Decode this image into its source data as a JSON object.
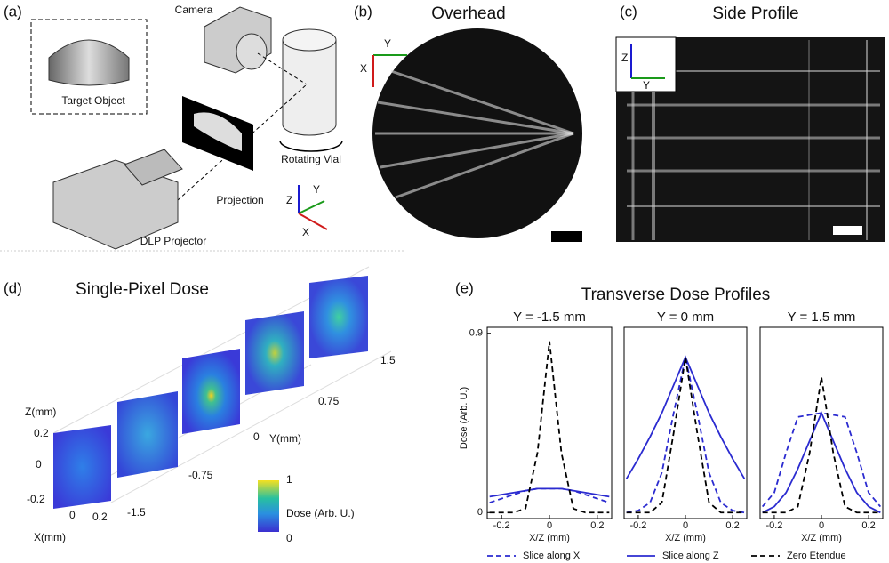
{
  "panel_a": {
    "label": "(a)",
    "camera": "Camera",
    "target": "Target Object",
    "vial": "Rotating Vial",
    "projection": "Projection",
    "projector": "DLP Projector",
    "axis_z": "Z",
    "axis_y": "Y",
    "axis_x": "X"
  },
  "panel_b": {
    "label": "(b)",
    "title": "Overhead",
    "axis_y": "Y",
    "axis_x": "X"
  },
  "panel_c": {
    "label": "(c)",
    "title": "Side Profile",
    "axis_z": "Z",
    "axis_y": "Y"
  },
  "panel_d": {
    "label": "(d)",
    "title": "Single-Pixel Dose",
    "z_label": "Z(mm)",
    "z_ticks": [
      "0.2",
      "0",
      "-0.2"
    ],
    "x_ticks": [
      "0",
      "0.2"
    ],
    "x_label": "X(mm)",
    "y_ticks": [
      "-1.5",
      "-0.75",
      "0",
      "0.75",
      "1.5"
    ],
    "y_label": "Y(mm)",
    "colorbar_max": "1",
    "colorbar_label": "Dose (Arb. U.)",
    "colorbar_min": "0"
  },
  "panel_e": {
    "label": "(e)",
    "title": "Transverse Dose Profiles"
  },
  "chart_data": [
    {
      "type": "line",
      "title": "Y = -1.5 mm",
      "y_label": "Dose (Arb. U.)",
      "x_label": "X/Z (mm)",
      "x": [
        -0.25,
        -0.2,
        -0.15,
        -0.1,
        -0.05,
        0,
        0.05,
        0.1,
        0.15,
        0.2,
        0.25
      ],
      "xlim": [
        -0.26,
        0.26
      ],
      "xticks": [
        -0.2,
        0,
        0.2
      ],
      "ylim": [
        -0.03,
        0.93
      ],
      "yticks": [
        0,
        0.9
      ],
      "series": [
        {
          "name": "Slice along X",
          "color": "#2b2bd0",
          "dash": true,
          "values": [
            0.05,
            0.07,
            0.09,
            0.11,
            0.12,
            0.12,
            0.12,
            0.11,
            0.09,
            0.07,
            0.05
          ]
        },
        {
          "name": "Slice along Z",
          "color": "#2b2bd0",
          "dash": false,
          "values": [
            0.08,
            0.09,
            0.1,
            0.11,
            0.12,
            0.12,
            0.12,
            0.11,
            0.1,
            0.09,
            0.08
          ]
        },
        {
          "name": "Zero Etendue",
          "color": "#000000",
          "dash": true,
          "values": [
            0,
            0,
            0,
            0.02,
            0.3,
            0.86,
            0.3,
            0.02,
            0,
            0,
            0
          ]
        }
      ]
    },
    {
      "type": "line",
      "title": "Y = 0 mm",
      "x_label": "X/Z (mm)",
      "x": [
        -0.25,
        -0.2,
        -0.15,
        -0.1,
        -0.05,
        0,
        0.05,
        0.1,
        0.15,
        0.2,
        0.25
      ],
      "xlim": [
        -0.26,
        0.26
      ],
      "xticks": [
        -0.2,
        0,
        0.2
      ],
      "ylim": [
        -0.03,
        0.93
      ],
      "series": [
        {
          "color": "#2b2bd0",
          "dash": true,
          "values": [
            0,
            0.01,
            0.05,
            0.2,
            0.5,
            0.78,
            0.5,
            0.2,
            0.05,
            0.01,
            0
          ]
        },
        {
          "color": "#2b2bd0",
          "dash": false,
          "values": [
            0.17,
            0.27,
            0.38,
            0.5,
            0.64,
            0.78,
            0.64,
            0.5,
            0.38,
            0.27,
            0.17
          ]
        },
        {
          "color": "#000000",
          "dash": true,
          "values": [
            0,
            0,
            0,
            0.05,
            0.4,
            0.78,
            0.4,
            0.05,
            0,
            0,
            0
          ]
        }
      ]
    },
    {
      "type": "line",
      "title": "Y = 1.5 mm",
      "x_label": "X/Z (mm)",
      "x": [
        -0.25,
        -0.2,
        -0.15,
        -0.1,
        -0.05,
        0,
        0.05,
        0.1,
        0.15,
        0.2,
        0.25
      ],
      "xlim": [
        -0.26,
        0.26
      ],
      "xticks": [
        -0.2,
        0,
        0.2
      ],
      "ylim": [
        -0.03,
        0.93
      ],
      "series": [
        {
          "color": "#2b2bd0",
          "dash": true,
          "values": [
            0.03,
            0.1,
            0.3,
            0.48,
            0.49,
            0.5,
            0.49,
            0.48,
            0.3,
            0.1,
            0.03
          ]
        },
        {
          "color": "#2b2bd0",
          "dash": false,
          "values": [
            0,
            0.03,
            0.1,
            0.22,
            0.36,
            0.5,
            0.36,
            0.22,
            0.1,
            0.03,
            0
          ]
        },
        {
          "color": "#000000",
          "dash": true,
          "values": [
            0,
            0,
            0,
            0.03,
            0.3,
            0.68,
            0.3,
            0.03,
            0,
            0,
            0
          ]
        }
      ]
    }
  ]
}
